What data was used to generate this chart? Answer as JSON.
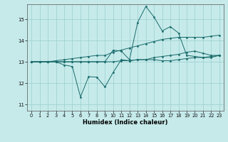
{
  "xlabel": "Humidex (Indice chaleur)",
  "xlim": [
    -0.5,
    23.5
  ],
  "ylim": [
    10.7,
    15.7
  ],
  "yticks": [
    11,
    12,
    13,
    14,
    15
  ],
  "xticks": [
    0,
    1,
    2,
    3,
    4,
    5,
    6,
    7,
    8,
    9,
    10,
    11,
    12,
    13,
    14,
    15,
    16,
    17,
    18,
    19,
    20,
    21,
    22,
    23
  ],
  "bg_color": "#c6eaea",
  "line_color": "#1a6b6b",
  "grid_color": "#9acece",
  "lines": [
    {
      "x": [
        0,
        1,
        2,
        3,
        4,
        5,
        6,
        7,
        8,
        9,
        10,
        11,
        12,
        13,
        14,
        15,
        16,
        17,
        18,
        19,
        20,
        21,
        22,
        23
      ],
      "y": [
        13.0,
        13.0,
        13.0,
        13.0,
        12.85,
        12.78,
        11.35,
        12.3,
        12.28,
        11.82,
        12.5,
        13.1,
        13.05,
        13.1,
        13.1,
        13.1,
        13.05,
        13.05,
        13.1,
        13.15,
        13.2,
        13.2,
        13.25,
        13.3
      ]
    },
    {
      "x": [
        0,
        1,
        2,
        3,
        4,
        5,
        6,
        7,
        8,
        9,
        10,
        11,
        12,
        13,
        14,
        15,
        16,
        17,
        18,
        19,
        20,
        21,
        22,
        23
      ],
      "y": [
        13.0,
        13.0,
        13.0,
        13.05,
        13.1,
        13.15,
        13.2,
        13.25,
        13.3,
        13.3,
        13.45,
        13.55,
        13.65,
        13.75,
        13.85,
        13.95,
        14.05,
        14.1,
        14.15,
        14.15,
        14.15,
        14.15,
        14.2,
        14.25
      ]
    },
    {
      "x": [
        0,
        1,
        2,
        3,
        4,
        5,
        6,
        7,
        8,
        9,
        10,
        11,
        12,
        13,
        14,
        15,
        16,
        17,
        18,
        19,
        20,
        21,
        22,
        23
      ],
      "y": [
        13.0,
        13.0,
        13.0,
        13.0,
        13.0,
        13.0,
        13.0,
        13.0,
        13.0,
        13.0,
        13.55,
        13.5,
        13.1,
        14.85,
        15.6,
        15.1,
        14.45,
        14.65,
        14.35,
        13.3,
        13.25,
        13.2,
        13.2,
        13.3
      ]
    },
    {
      "x": [
        0,
        1,
        2,
        3,
        4,
        5,
        6,
        7,
        8,
        9,
        10,
        11,
        12,
        13,
        14,
        15,
        16,
        17,
        18,
        19,
        20,
        21,
        22,
        23
      ],
      "y": [
        13.0,
        13.0,
        13.0,
        13.0,
        13.0,
        13.0,
        13.0,
        13.0,
        13.0,
        13.0,
        13.0,
        13.05,
        13.05,
        13.1,
        13.1,
        13.2,
        13.25,
        13.3,
        13.35,
        13.45,
        13.5,
        13.4,
        13.3,
        13.3
      ]
    }
  ]
}
